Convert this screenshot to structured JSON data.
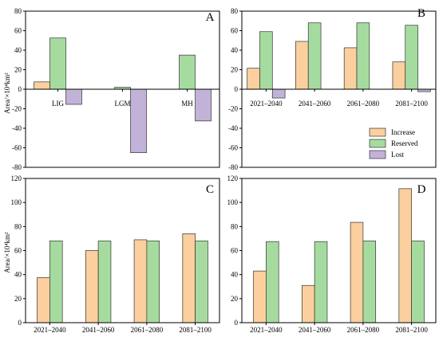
{
  "colors": {
    "Increase": "#FBCF9E",
    "Reserved": "#A6DBA0",
    "Lost": "#C2B2D8",
    "edge": "#333333"
  },
  "legend": {
    "placement": "right, beside panel B",
    "entries": [
      "Increase",
      "Reserved",
      "Lost"
    ]
  },
  "chart_data": [
    {
      "panel": "A",
      "type": "bar",
      "categories": [
        "LIG",
        "LGM",
        "MH"
      ],
      "series": [
        {
          "name": "Increase",
          "values": [
            7.5,
            0,
            0
          ]
        },
        {
          "name": "Reserved",
          "values": [
            52.5,
            2,
            35
          ]
        },
        {
          "name": "Lost",
          "values": [
            -15.5,
            -65,
            -32.5
          ]
        }
      ],
      "ylabel": "Area/×10⁴km²",
      "ylim": [
        -80,
        80
      ],
      "yticks": [
        -80,
        -60,
        -40,
        -20,
        0,
        20,
        40,
        60,
        80
      ],
      "category_labels_at_zero": true
    },
    {
      "panel": "B",
      "type": "bar",
      "categories": [
        "2021–2040",
        "2041–2060",
        "2061–2080",
        "2081–2100"
      ],
      "series": [
        {
          "name": "Increase",
          "values": [
            21.5,
            49,
            42.5,
            28
          ]
        },
        {
          "name": "Reserved",
          "values": [
            59,
            68,
            68,
            65.5
          ]
        },
        {
          "name": "Lost",
          "values": [
            -9,
            0,
            0,
            -2.5
          ]
        }
      ],
      "ylabel": "",
      "ylim": [
        -80,
        80
      ],
      "yticks": [
        -80,
        -60,
        -40,
        -20,
        0,
        20,
        40,
        60,
        80
      ],
      "category_labels_at_zero": true
    },
    {
      "panel": "C",
      "type": "bar",
      "categories": [
        "2021–2040",
        "2041–2060",
        "2061–2080",
        "2081–2100"
      ],
      "series": [
        {
          "name": "Increase",
          "values": [
            37.5,
            60,
            69,
            74
          ]
        },
        {
          "name": "Reserved",
          "values": [
            68,
            68,
            68,
            68
          ]
        }
      ],
      "ylabel": "Area/×10⁴km²",
      "ylim": [
        0,
        120
      ],
      "yticks": [
        0,
        20,
        40,
        60,
        80,
        100,
        120
      ],
      "category_labels_at_zero": false
    },
    {
      "panel": "D",
      "type": "bar",
      "categories": [
        "2021–2040",
        "2041–2060",
        "2061–2080",
        "2081–2100"
      ],
      "series": [
        {
          "name": "Increase",
          "values": [
            43,
            31,
            83.5,
            111.5
          ]
        },
        {
          "name": "Reserved",
          "values": [
            67.5,
            67.5,
            68,
            68
          ]
        }
      ],
      "ylabel": "",
      "ylim": [
        0,
        120
      ],
      "yticks": [
        0,
        20,
        40,
        60,
        80,
        100,
        120
      ],
      "category_labels_at_zero": false
    }
  ]
}
